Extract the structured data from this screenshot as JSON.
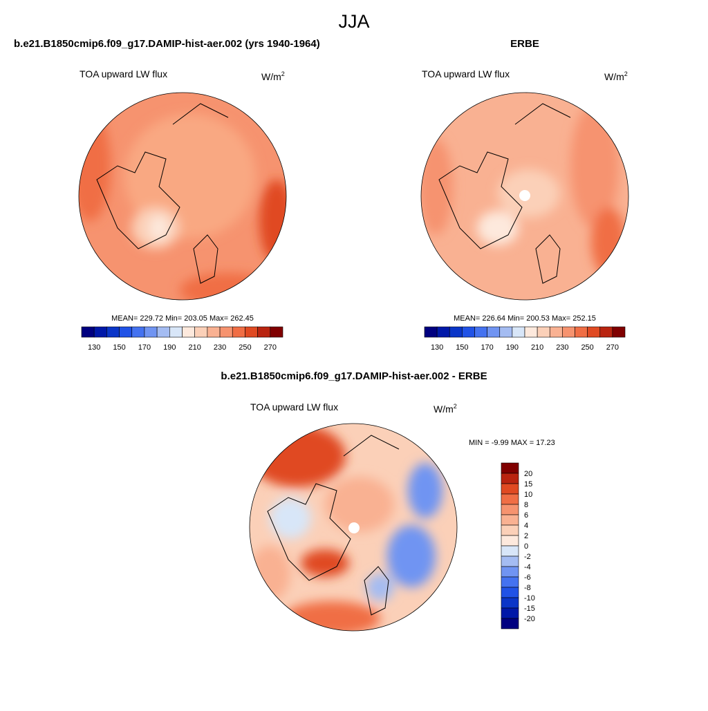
{
  "title": "JJA",
  "panels": [
    {
      "title": "b.e21.B1850cmip6.f09_g17.DAMIP-hist-aer.002 (yrs 1940-1964)",
      "left_label": "TOA upward LW flux",
      "unit": {
        "base": "W/m",
        "exp": "2"
      },
      "stats": "MEAN= 229.72  Min= 203.05  Max= 262.45",
      "colorbar": {
        "labels": [
          130,
          150,
          170,
          190,
          210,
          230,
          250,
          270
        ]
      }
    },
    {
      "title": "ERBE",
      "left_label": "TOA upward LW flux",
      "unit": {
        "base": "W/m",
        "exp": "2"
      },
      "stats": "MEAN= 226.64  Min= 200.53  Max= 252.15",
      "colorbar": {
        "labels": [
          130,
          150,
          170,
          190,
          210,
          230,
          250,
          270
        ]
      }
    },
    {
      "title": "b.e21.B1850cmip6.f09_g17.DAMIP-hist-aer.002 - ERBE",
      "left_label": "TOA upward LW flux",
      "unit": {
        "base": "W/m",
        "exp": "2"
      },
      "stats": "MIN =  -9.99 MAX =  17.23",
      "colorbar": {
        "labels": [
          20,
          15,
          10,
          8,
          6,
          4,
          2,
          0,
          -2,
          -4,
          -6,
          -8,
          -10,
          -15,
          -20
        ]
      }
    }
  ],
  "colors": [
    "#000080",
    "#0018a8",
    "#0a35c8",
    "#2052e6",
    "#4472f0",
    "#7094f2",
    "#a4bcf2",
    "#d8e6f8",
    "#fde9dd",
    "#fbd0b8",
    "#f9b192",
    "#f6936f",
    "#f06e45",
    "#e04a22",
    "#b92410",
    "#800000"
  ]
}
